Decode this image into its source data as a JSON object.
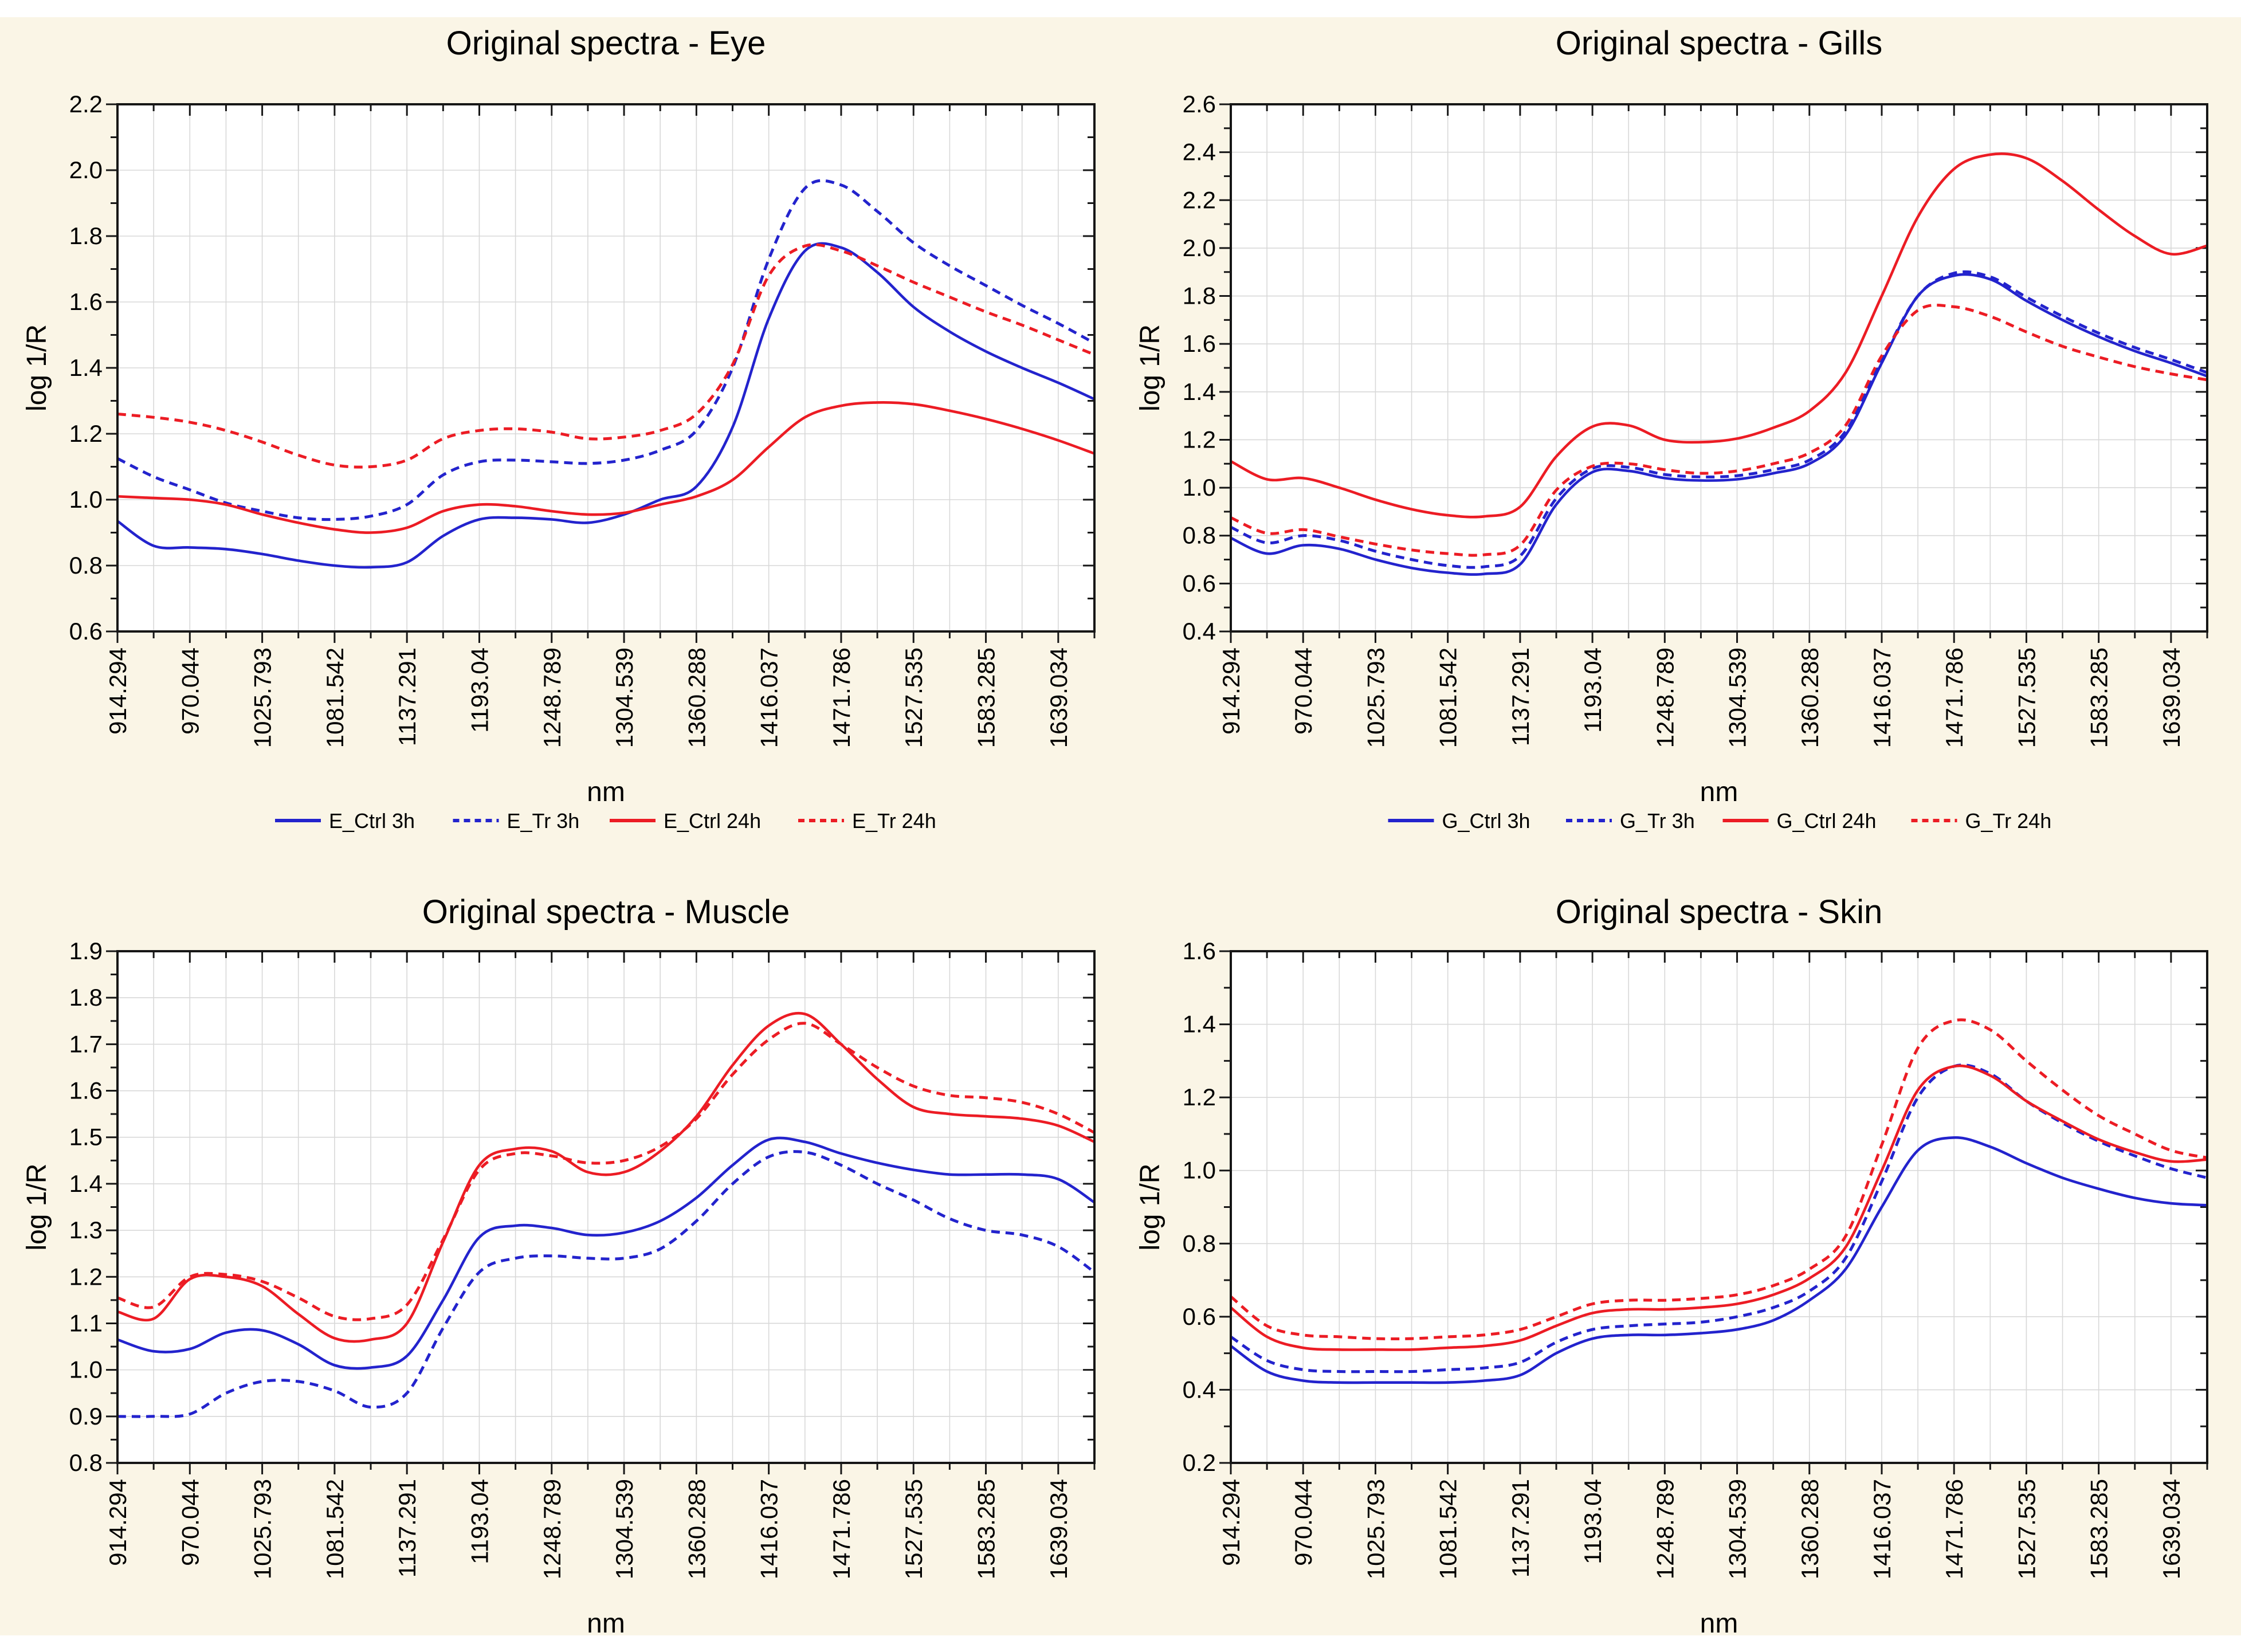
{
  "figure": {
    "background": "#ffffff",
    "panel_background": "#faf5e6",
    "plot_background": "#ffffff",
    "grid_color": "#d8d8d8",
    "axis_color": "#161616",
    "series_colors": {
      "blue": "#2323cd",
      "red": "#ec1c24"
    }
  },
  "x_axis": {
    "label": "nm",
    "tick_labels": [
      "914.294",
      "970.044",
      "1025.793",
      "1081.542",
      "1137.291",
      "1193.04",
      "1248.789",
      "1304.539",
      "1360.288",
      "1416.037",
      "1471.786",
      "1527.535",
      "1583.285",
      "1639.034"
    ],
    "min": 914.294,
    "tick_step": 55.7495,
    "max": 1666.918,
    "samples_per_curve": 28
  },
  "chart_data": [
    {
      "type": "line",
      "id": "eye",
      "title": "Original spectra - Eye",
      "ylabel": "log 1/R",
      "xlabel": "nm",
      "ymin": 0.6,
      "ymax": 2.2,
      "ystep": 0.2,
      "grid": true,
      "legend_position": "bottom",
      "legend": [
        {
          "label": "E_Ctrl 3h",
          "style": "blue-solid"
        },
        {
          "label": "E_Tr 3h",
          "style": "blue-dashed"
        },
        {
          "label": "E_Ctrl 24h",
          "style": "red-solid"
        },
        {
          "label": "E_Tr 24h",
          "style": "red-dashed"
        }
      ],
      "series": [
        {
          "style": "blue-solid",
          "values": [
            0.935,
            0.86,
            0.855,
            0.85,
            0.835,
            0.815,
            0.8,
            0.795,
            0.81,
            0.89,
            0.94,
            0.945,
            0.94,
            0.93,
            0.955,
            1.0,
            1.04,
            1.22,
            1.55,
            1.755,
            1.765,
            1.69,
            1.585,
            1.51,
            1.45,
            1.4,
            1.355,
            1.305
          ]
        },
        {
          "style": "blue-dashed",
          "values": [
            1.125,
            1.07,
            1.03,
            0.99,
            0.965,
            0.945,
            0.94,
            0.95,
            0.985,
            1.075,
            1.115,
            1.12,
            1.115,
            1.11,
            1.12,
            1.15,
            1.21,
            1.4,
            1.73,
            1.945,
            1.955,
            1.875,
            1.78,
            1.71,
            1.65,
            1.59,
            1.535,
            1.475
          ]
        },
        {
          "style": "red-solid",
          "values": [
            1.01,
            1.005,
            1.0,
            0.985,
            0.955,
            0.93,
            0.91,
            0.9,
            0.915,
            0.965,
            0.985,
            0.98,
            0.965,
            0.955,
            0.96,
            0.985,
            1.01,
            1.06,
            1.16,
            1.25,
            1.285,
            1.295,
            1.29,
            1.27,
            1.245,
            1.215,
            1.18,
            1.14
          ]
        },
        {
          "style": "red-dashed",
          "values": [
            1.26,
            1.25,
            1.235,
            1.21,
            1.175,
            1.135,
            1.105,
            1.1,
            1.12,
            1.185,
            1.21,
            1.215,
            1.205,
            1.185,
            1.19,
            1.21,
            1.26,
            1.41,
            1.68,
            1.77,
            1.755,
            1.71,
            1.66,
            1.615,
            1.57,
            1.53,
            1.485,
            1.44
          ]
        }
      ]
    },
    {
      "type": "line",
      "id": "gills",
      "title": "Original spectra - Gills",
      "ylabel": "log 1/R",
      "xlabel": "nm",
      "ymin": 0.4,
      "ymax": 2.6,
      "ystep": 0.2,
      "grid": true,
      "legend_position": "bottom",
      "legend": [
        {
          "label": "G_Ctrl 3h",
          "style": "blue-solid"
        },
        {
          "label": "G_Tr 3h",
          "style": "blue-dashed"
        },
        {
          "label": "G_Ctrl 24h",
          "style": "red-solid"
        },
        {
          "label": "G_Tr 24h",
          "style": "red-dashed"
        }
      ],
      "series": [
        {
          "style": "blue-solid",
          "values": [
            0.79,
            0.725,
            0.76,
            0.745,
            0.7,
            0.665,
            0.645,
            0.64,
            0.68,
            0.93,
            1.065,
            1.07,
            1.04,
            1.03,
            1.035,
            1.06,
            1.1,
            1.22,
            1.52,
            1.8,
            1.885,
            1.87,
            1.78,
            1.7,
            1.63,
            1.57,
            1.52,
            1.465
          ]
        },
        {
          "style": "blue-dashed",
          "values": [
            0.835,
            0.77,
            0.8,
            0.78,
            0.735,
            0.7,
            0.675,
            0.67,
            0.715,
            0.955,
            1.08,
            1.085,
            1.055,
            1.045,
            1.05,
            1.075,
            1.115,
            1.235,
            1.53,
            1.8,
            1.895,
            1.88,
            1.795,
            1.715,
            1.645,
            1.585,
            1.535,
            1.48
          ]
        },
        {
          "style": "red-solid",
          "values": [
            1.11,
            1.035,
            1.04,
            1.0,
            0.95,
            0.91,
            0.885,
            0.88,
            0.92,
            1.13,
            1.255,
            1.26,
            1.2,
            1.19,
            1.205,
            1.25,
            1.32,
            1.48,
            1.8,
            2.13,
            2.33,
            2.39,
            2.375,
            2.28,
            2.16,
            2.05,
            1.975,
            2.01
          ]
        },
        {
          "style": "red-dashed",
          "values": [
            0.875,
            0.81,
            0.825,
            0.795,
            0.765,
            0.74,
            0.725,
            0.72,
            0.76,
            0.99,
            1.09,
            1.1,
            1.075,
            1.06,
            1.07,
            1.1,
            1.145,
            1.26,
            1.55,
            1.74,
            1.755,
            1.715,
            1.65,
            1.59,
            1.545,
            1.505,
            1.475,
            1.45
          ]
        }
      ]
    },
    {
      "type": "line",
      "id": "muscle",
      "title": "Original spectra - Muscle",
      "ylabel": "log 1/R",
      "xlabel": "nm",
      "ymin": 0.8,
      "ymax": 1.9,
      "ystep": 0.1,
      "grid": true,
      "legend_position": "none",
      "legend": [],
      "series": [
        {
          "style": "blue-solid",
          "values": [
            1.065,
            1.04,
            1.045,
            1.08,
            1.085,
            1.055,
            1.01,
            1.005,
            1.03,
            1.15,
            1.285,
            1.31,
            1.305,
            1.29,
            1.295,
            1.32,
            1.37,
            1.44,
            1.495,
            1.49,
            1.465,
            1.445,
            1.43,
            1.42,
            1.42,
            1.42,
            1.41,
            1.36
          ]
        },
        {
          "style": "blue-dashed",
          "values": [
            0.9,
            0.9,
            0.905,
            0.95,
            0.975,
            0.975,
            0.955,
            0.92,
            0.95,
            1.09,
            1.21,
            1.24,
            1.245,
            1.24,
            1.24,
            1.26,
            1.32,
            1.4,
            1.458,
            1.468,
            1.44,
            1.4,
            1.365,
            1.325,
            1.3,
            1.29,
            1.265,
            1.21
          ]
        },
        {
          "style": "red-solid",
          "values": [
            1.125,
            1.11,
            1.195,
            1.2,
            1.18,
            1.12,
            1.068,
            1.065,
            1.1,
            1.275,
            1.44,
            1.475,
            1.47,
            1.425,
            1.425,
            1.47,
            1.545,
            1.655,
            1.74,
            1.765,
            1.7,
            1.625,
            1.565,
            1.55,
            1.545,
            1.54,
            1.525,
            1.49
          ]
        },
        {
          "style": "red-dashed",
          "values": [
            1.155,
            1.135,
            1.2,
            1.205,
            1.19,
            1.155,
            1.115,
            1.11,
            1.14,
            1.28,
            1.43,
            1.465,
            1.46,
            1.445,
            1.45,
            1.48,
            1.54,
            1.635,
            1.71,
            1.745,
            1.7,
            1.65,
            1.61,
            1.59,
            1.585,
            1.575,
            1.55,
            1.51
          ]
        }
      ]
    },
    {
      "type": "line",
      "id": "skin",
      "title": "Original spectra - Skin",
      "ylabel": "log 1/R",
      "xlabel": "nm",
      "ymin": 0.2,
      "ymax": 1.6,
      "ystep": 0.2,
      "grid": true,
      "legend_position": "none",
      "legend": [],
      "series": [
        {
          "style": "blue-solid",
          "values": [
            0.52,
            0.45,
            0.425,
            0.42,
            0.42,
            0.42,
            0.42,
            0.425,
            0.44,
            0.5,
            0.54,
            0.55,
            0.55,
            0.555,
            0.565,
            0.59,
            0.645,
            0.73,
            0.9,
            1.055,
            1.09,
            1.065,
            1.02,
            0.98,
            0.95,
            0.925,
            0.91,
            0.905
          ]
        },
        {
          "style": "blue-dashed",
          "values": [
            0.545,
            0.48,
            0.455,
            0.45,
            0.45,
            0.45,
            0.455,
            0.46,
            0.475,
            0.53,
            0.565,
            0.575,
            0.58,
            0.585,
            0.6,
            0.625,
            0.67,
            0.76,
            0.97,
            1.2,
            1.285,
            1.265,
            1.19,
            1.13,
            1.08,
            1.04,
            1.005,
            0.98
          ]
        },
        {
          "style": "red-solid",
          "values": [
            0.625,
            0.545,
            0.515,
            0.51,
            0.51,
            0.51,
            0.515,
            0.52,
            0.535,
            0.575,
            0.61,
            0.62,
            0.62,
            0.625,
            0.635,
            0.66,
            0.705,
            0.79,
            1.0,
            1.22,
            1.285,
            1.26,
            1.19,
            1.135,
            1.085,
            1.05,
            1.025,
            1.03
          ]
        },
        {
          "style": "red-dashed",
          "values": [
            0.655,
            0.575,
            0.55,
            0.545,
            0.54,
            0.54,
            0.545,
            0.55,
            0.565,
            0.6,
            0.635,
            0.645,
            0.645,
            0.65,
            0.66,
            0.685,
            0.73,
            0.82,
            1.07,
            1.335,
            1.41,
            1.385,
            1.3,
            1.22,
            1.15,
            1.1,
            1.055,
            1.035
          ]
        }
      ]
    }
  ]
}
